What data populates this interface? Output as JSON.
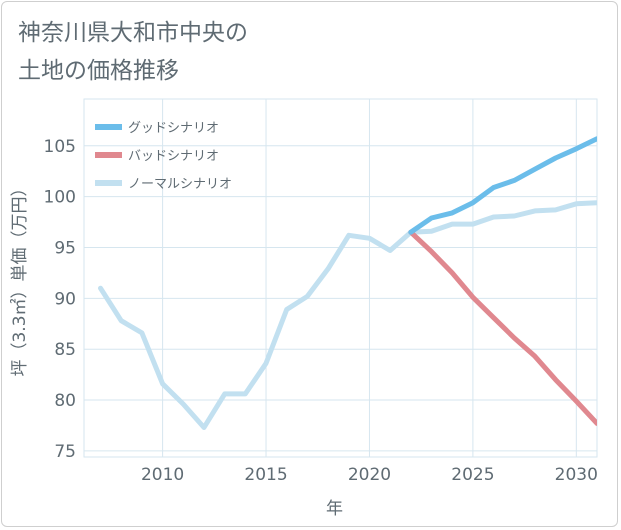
{
  "title_line1": "神奈川県大和市中央の",
  "title_line2": "土地の価格推移",
  "colors": {
    "good": "#6bbdea",
    "bad": "#e0888f",
    "normal": "#c2e0f0",
    "grid": "#d6e6ef",
    "axis_text": "#5f6b73"
  },
  "chart_data": {
    "type": "line",
    "title": "神奈川県大和市中央の土地の価格推移",
    "xlabel": "年",
    "ylabel": "坪（3.3㎡）単価（万円）",
    "xlim": [
      2006.2,
      2031
    ],
    "ylim": [
      74.4,
      109.6
    ],
    "xticks": [
      2010,
      2015,
      2020,
      2025,
      2030
    ],
    "yticks": [
      75,
      80,
      85,
      90,
      95,
      100,
      105
    ],
    "xtick_labels": [
      "2010",
      "2015",
      "2020",
      "2025",
      "2030"
    ],
    "ytick_labels": [
      "75",
      "80",
      "85",
      "90",
      "95",
      "100",
      "105"
    ],
    "grid": true,
    "legend_position": "top-left",
    "series": [
      {
        "name": "グッドシナリオ",
        "key": "good",
        "x": [
          2022,
          2023,
          2024,
          2025,
          2026,
          2027,
          2028,
          2029,
          2030,
          2031
        ],
        "values": [
          96.5,
          97.9,
          98.4,
          99.4,
          100.9,
          101.6,
          102.7,
          103.8,
          104.7,
          105.7
        ]
      },
      {
        "name": "バッドシナリオ",
        "key": "bad",
        "x": [
          2022,
          2023,
          2024,
          2025,
          2026,
          2027,
          2028,
          2029,
          2030,
          2031
        ],
        "values": [
          96.5,
          94.6,
          92.5,
          90.1,
          88.1,
          86.1,
          84.3,
          82.0,
          79.9,
          77.7
        ]
      },
      {
        "name": "ノーマルシナリオ",
        "key": "normal",
        "x": [
          2007,
          2008,
          2009,
          2010,
          2011,
          2012,
          2013,
          2014,
          2015,
          2016,
          2017,
          2018,
          2019,
          2020,
          2021,
          2022,
          2023,
          2024,
          2025,
          2026,
          2027,
          2028,
          2029,
          2030,
          2031
        ],
        "values": [
          91.0,
          87.8,
          86.6,
          81.6,
          79.6,
          77.3,
          80.6,
          80.6,
          83.6,
          88.9,
          90.2,
          92.9,
          96.2,
          95.9,
          94.7,
          96.5,
          96.6,
          97.3,
          97.3,
          98.0,
          98.1,
          98.6,
          98.7,
          99.3,
          99.4
        ]
      }
    ]
  }
}
